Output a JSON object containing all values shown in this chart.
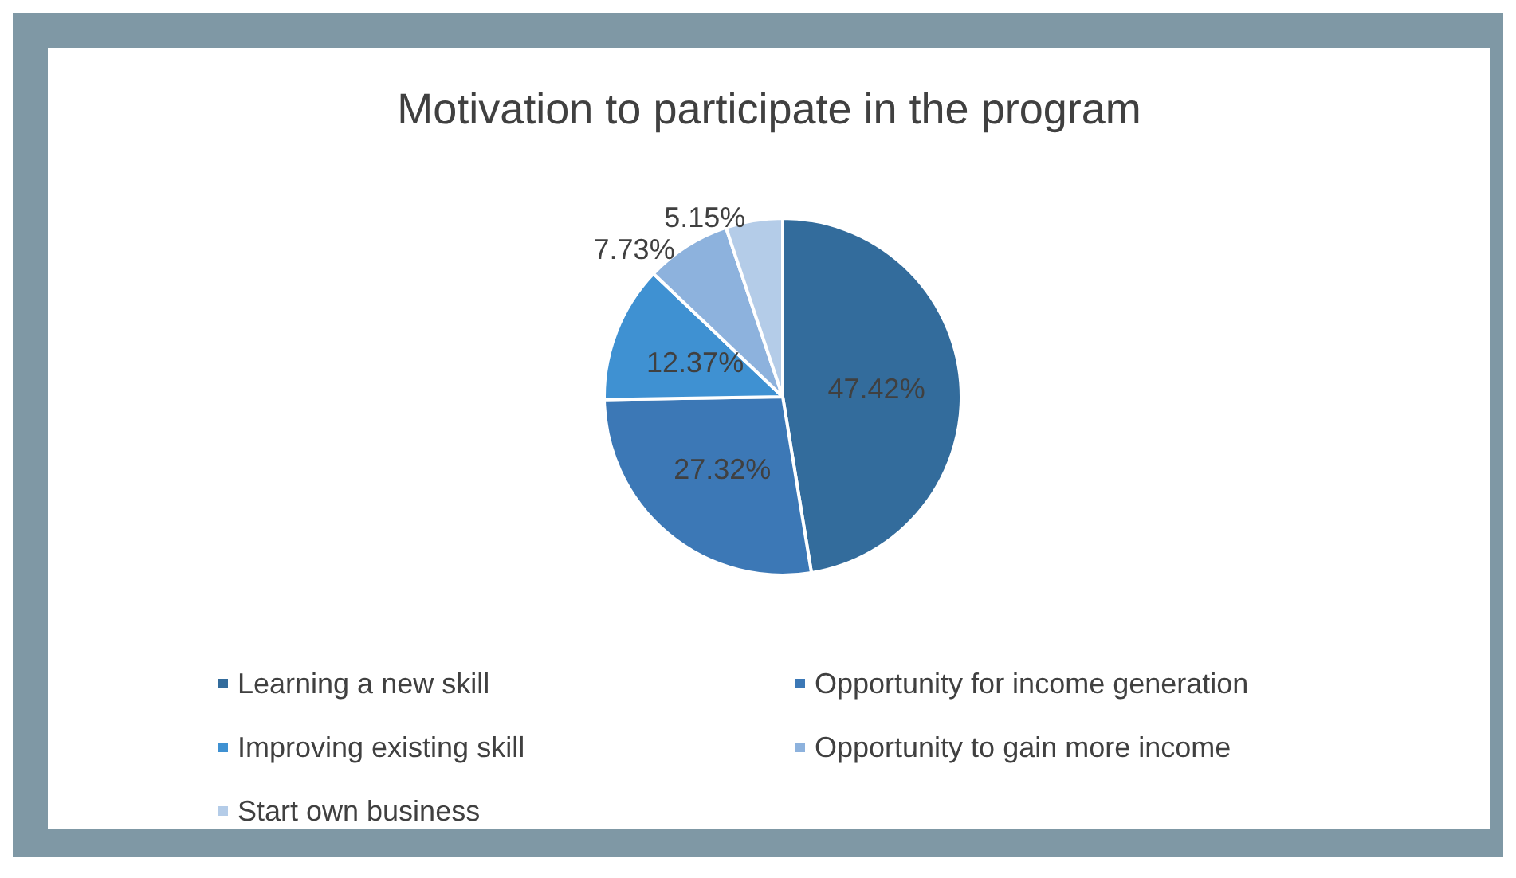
{
  "chart_data": {
    "type": "pie",
    "title": "Motivation to participate in the program",
    "categories": [
      "Learning a new skill",
      "Opportunity for income generation",
      "Improving existing skill",
      "Opportunity to gain more income",
      "Start own business"
    ],
    "values": [
      47.42,
      27.32,
      12.37,
      7.73,
      5.15
    ],
    "colors": [
      "#336c9c",
      "#3c78b6",
      "#3f91d2",
      "#8db2dd",
      "#b4cce8"
    ],
    "value_labels": [
      "47.42%",
      "27.32%",
      "12.37%",
      "7.73%",
      "5.15%"
    ],
    "legend": "bottom"
  }
}
